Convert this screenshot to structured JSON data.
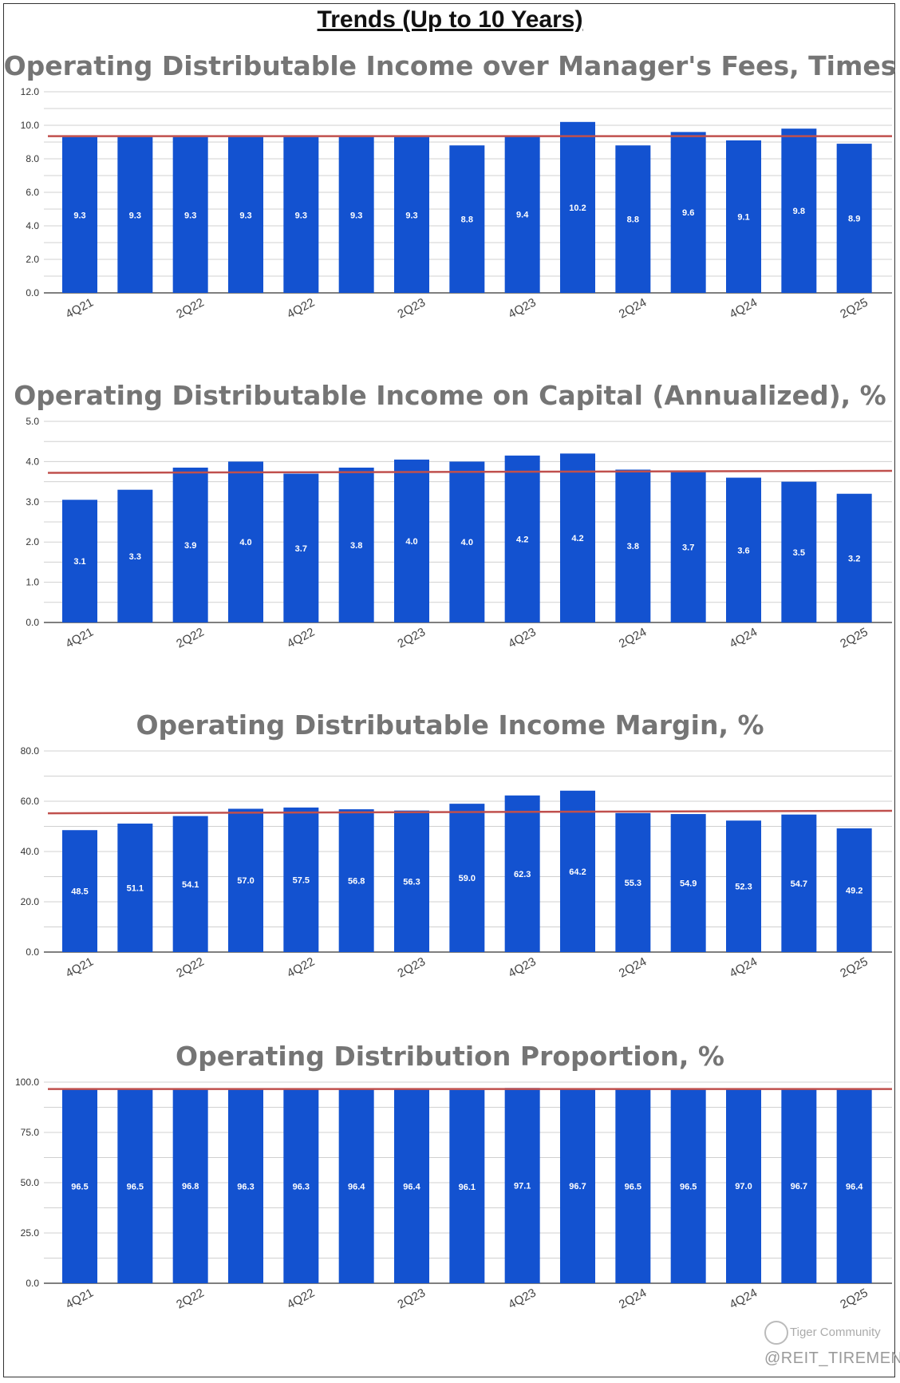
{
  "page": {
    "title": "Trends (Up to 10 Years)"
  },
  "colors": {
    "bar": "#1352D0",
    "average_line": "#C0504D",
    "grid": "#D0D0D0",
    "title": "#757575"
  },
  "watermark": {
    "brand": "Tiger Community",
    "handle": "@REIT_TIREMENT"
  },
  "chart_data": [
    {
      "type": "bar",
      "title": "Operating Distributable Income over Manager's Fees, Times",
      "categories": [
        "4Q21",
        "1Q22",
        "2Q22",
        "3Q22",
        "4Q22",
        "1Q23",
        "2Q23",
        "3Q23",
        "4Q23",
        "1Q24",
        "2Q24",
        "3Q24",
        "4Q24",
        "1Q25",
        "2Q25"
      ],
      "shown_category_labels": [
        "4Q21",
        "",
        "2Q22",
        "",
        "4Q22",
        "",
        "2Q23",
        "",
        "4Q23",
        "",
        "2Q24",
        "",
        "4Q24",
        "",
        "2Q25"
      ],
      "values": [
        9.3,
        9.3,
        9.3,
        9.3,
        9.3,
        9.3,
        9.3,
        8.8,
        9.4,
        10.2,
        8.8,
        9.6,
        9.1,
        9.8,
        8.9
      ],
      "value_labels": [
        "9.3",
        "9.3",
        "9.3",
        "9.3",
        "9.3",
        "9.3",
        "9.3",
        "8.8",
        "9.4",
        "10.2",
        "8.8",
        "9.6",
        "9.1",
        "9.8",
        "8.9"
      ],
      "ylim": [
        0,
        12
      ],
      "yticks": [
        0,
        2,
        4,
        6,
        8,
        10,
        12
      ],
      "ytick_labels": [
        "0.0",
        "2.0",
        "4.0",
        "6.0",
        "8.0",
        "10.0",
        "12.0"
      ],
      "average_line": [
        9.35,
        9.35
      ],
      "xlabel": "",
      "ylabel": ""
    },
    {
      "type": "bar",
      "title": "Operating Distributable Income on Capital (Annualized), %",
      "categories": [
        "4Q21",
        "1Q22",
        "2Q22",
        "3Q22",
        "4Q22",
        "1Q23",
        "2Q23",
        "3Q23",
        "4Q23",
        "1Q24",
        "2Q24",
        "3Q24",
        "4Q24",
        "1Q25",
        "2Q25"
      ],
      "shown_category_labels": [
        "4Q21",
        "",
        "2Q22",
        "",
        "4Q22",
        "",
        "2Q23",
        "",
        "4Q23",
        "",
        "2Q24",
        "",
        "4Q24",
        "",
        "2Q25"
      ],
      "values": [
        3.05,
        3.3,
        3.85,
        4.0,
        3.7,
        3.85,
        4.05,
        4.0,
        4.15,
        4.2,
        3.8,
        3.75,
        3.6,
        3.5,
        3.2
      ],
      "value_labels": [
        "3.1",
        "3.3",
        "3.9",
        "4.0",
        "3.7",
        "3.8",
        "4.0",
        "4.0",
        "4.2",
        "4.2",
        "3.8",
        "3.7",
        "3.6",
        "3.5",
        "3.2"
      ],
      "ylim": [
        0,
        5
      ],
      "yticks": [
        0,
        1,
        2,
        3,
        4,
        5
      ],
      "ytick_labels": [
        "0.0",
        "1.0",
        "2.0",
        "3.0",
        "4.0",
        "5.0"
      ],
      "average_line": [
        3.72,
        3.77
      ],
      "xlabel": "",
      "ylabel": ""
    },
    {
      "type": "bar",
      "title": "Operating Distributable Income Margin, %",
      "categories": [
        "4Q21",
        "1Q22",
        "2Q22",
        "3Q22",
        "4Q22",
        "1Q23",
        "2Q23",
        "3Q23",
        "4Q23",
        "1Q24",
        "2Q24",
        "3Q24",
        "4Q24",
        "1Q25",
        "2Q25"
      ],
      "shown_category_labels": [
        "4Q21",
        "",
        "2Q22",
        "",
        "4Q22",
        "",
        "2Q23",
        "",
        "4Q23",
        "",
        "2Q24",
        "",
        "4Q24",
        "",
        "2Q25"
      ],
      "values": [
        48.5,
        51.1,
        54.1,
        57.0,
        57.5,
        56.8,
        56.3,
        59.0,
        62.3,
        64.2,
        55.3,
        54.9,
        52.3,
        54.7,
        49.2
      ],
      "value_labels": [
        "48.5",
        "51.1",
        "54.1",
        "57.0",
        "57.5",
        "56.8",
        "56.3",
        "59.0",
        "62.3",
        "64.2",
        "55.3",
        "54.9",
        "52.3",
        "54.7",
        "49.2"
      ],
      "ylim": [
        0,
        80
      ],
      "yticks": [
        0,
        20,
        40,
        60,
        80
      ],
      "ytick_labels": [
        "0.0",
        "20.0",
        "40.0",
        "60.0",
        "80.0"
      ],
      "average_line": [
        55.2,
        56.2
      ],
      "xlabel": "",
      "ylabel": ""
    },
    {
      "type": "bar",
      "title": "Operating Distribution Proportion, %",
      "categories": [
        "4Q21",
        "1Q22",
        "2Q22",
        "3Q22",
        "4Q22",
        "1Q23",
        "2Q23",
        "3Q23",
        "4Q23",
        "1Q24",
        "2Q24",
        "3Q24",
        "4Q24",
        "1Q25",
        "2Q25"
      ],
      "shown_category_labels": [
        "4Q21",
        "",
        "2Q22",
        "",
        "4Q22",
        "",
        "2Q23",
        "",
        "4Q23",
        "",
        "2Q24",
        "",
        "4Q24",
        "",
        "2Q25"
      ],
      "values": [
        96.5,
        96.5,
        96.8,
        96.3,
        96.3,
        96.4,
        96.4,
        96.1,
        97.1,
        96.7,
        96.5,
        96.5,
        97.0,
        96.7,
        96.4
      ],
      "value_labels": [
        "96.5",
        "96.5",
        "96.8",
        "96.3",
        "96.3",
        "96.4",
        "96.4",
        "96.1",
        "97.1",
        "96.7",
        "96.5",
        "96.5",
        "97.0",
        "96.7",
        "96.4"
      ],
      "ylim": [
        0,
        100
      ],
      "yticks": [
        0,
        25,
        50,
        75,
        100
      ],
      "ytick_labels": [
        "0.0",
        "25.0",
        "50.0",
        "75.0",
        "100.0"
      ],
      "average_line": [
        96.6,
        96.6
      ],
      "xlabel": "",
      "ylabel": ""
    }
  ]
}
